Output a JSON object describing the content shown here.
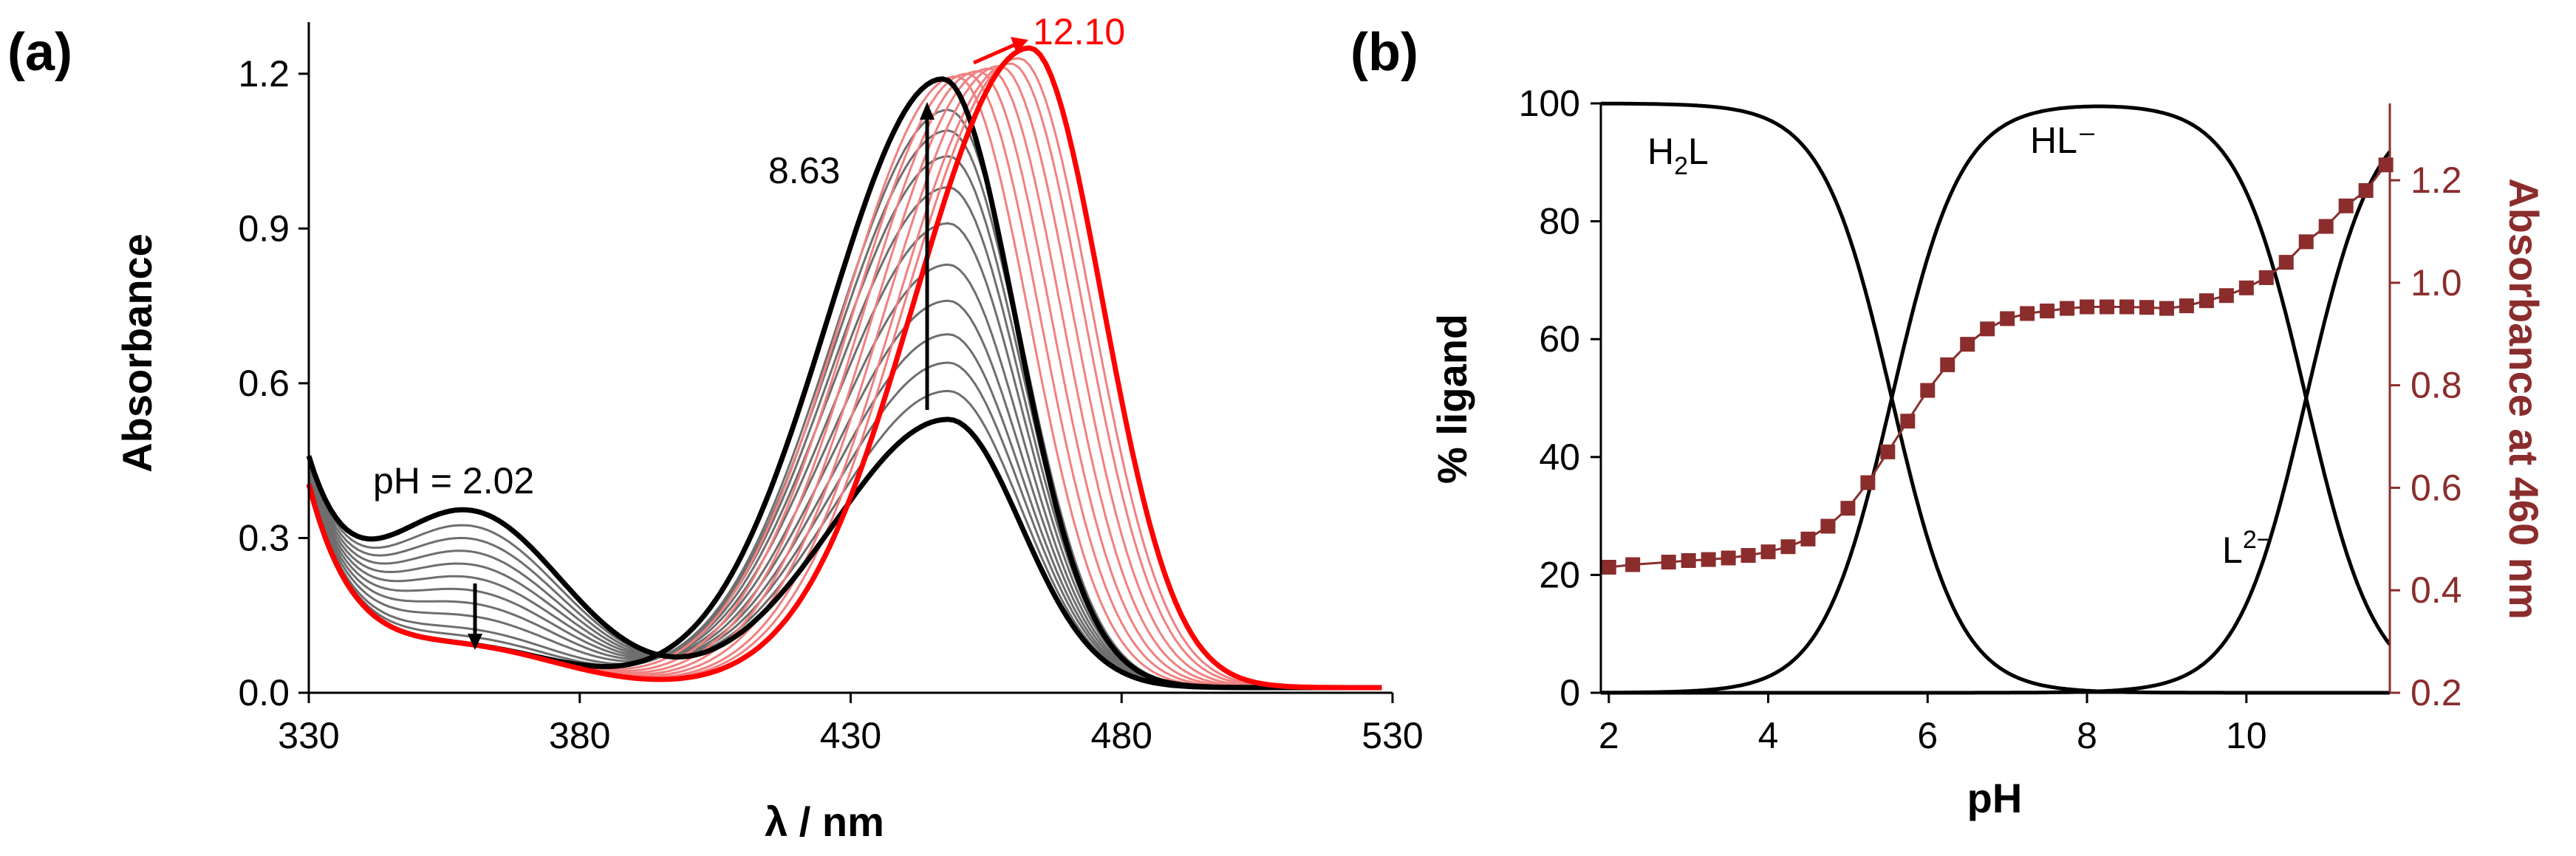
{
  "panel_labels": {
    "a": "(a)",
    "b": "(b)"
  },
  "chart_data": [
    {
      "type": "line",
      "panel": "(a)",
      "title": "",
      "xlabel": "λ / nm",
      "ylabel": "Absorbance",
      "xlim": [
        330,
        530
      ],
      "ylim": [
        0.0,
        1.3
      ],
      "x_ticks": [
        "330",
        "380",
        "430",
        "480",
        "530"
      ],
      "y_ticks": [
        "0.0",
        "0.3",
        "0.6",
        "0.9",
        "1.2"
      ],
      "grid": false,
      "annotations": {
        "start": "pH = 2.02",
        "mid": "8.63",
        "end": "12.10"
      },
      "colors": {
        "gray": "#6e6e6e",
        "black": "#000000",
        "pink": "#f08080",
        "red": "#ff0000"
      },
      "spectra": [
        {
          "name": "pH 2.02",
          "group": "gray-bold",
          "peak": 0.52,
          "pos": 448,
          "shoulder": 0.33
        },
        {
          "name": "gray-1",
          "group": "gray",
          "peak": 0.575,
          "pos": 448,
          "shoulder": 0.3
        },
        {
          "name": "gray-2",
          "group": "gray",
          "peak": 0.63,
          "pos": 448,
          "shoulder": 0.275
        },
        {
          "name": "gray-3",
          "group": "gray",
          "peak": 0.685,
          "pos": 448,
          "shoulder": 0.25
        },
        {
          "name": "gray-4",
          "group": "gray",
          "peak": 0.75,
          "pos": 448,
          "shoulder": 0.225
        },
        {
          "name": "gray-5",
          "group": "gray",
          "peak": 0.82,
          "pos": 448,
          "shoulder": 0.2
        },
        {
          "name": "gray-6",
          "group": "gray",
          "peak": 0.9,
          "pos": 448,
          "shoulder": 0.175
        },
        {
          "name": "gray-7",
          "group": "gray",
          "peak": 0.97,
          "pos": 448,
          "shoulder": 0.15
        },
        {
          "name": "gray-8",
          "group": "gray",
          "peak": 1.03,
          "pos": 448,
          "shoulder": 0.125
        },
        {
          "name": "gray-9",
          "group": "gray",
          "peak": 1.08,
          "pos": 448,
          "shoulder": 0.1
        },
        {
          "name": "gray-10",
          "group": "gray",
          "peak": 1.12,
          "pos": 448,
          "shoulder": 0.085
        },
        {
          "name": "pH 8.63",
          "group": "black-bold",
          "peak": 1.18,
          "pos": 447,
          "shoulder": 0.07
        },
        {
          "name": "pink-1",
          "group": "pink",
          "peak": 1.185,
          "pos": 449.5,
          "shoulder": 0.07
        },
        {
          "name": "pink-2",
          "group": "pink",
          "peak": 1.19,
          "pos": 451.5,
          "shoulder": 0.07
        },
        {
          "name": "pink-3",
          "group": "pink",
          "peak": 1.195,
          "pos": 453.5,
          "shoulder": 0.07
        },
        {
          "name": "pink-4",
          "group": "pink",
          "peak": 1.2,
          "pos": 455.5,
          "shoulder": 0.07
        },
        {
          "name": "pink-5",
          "group": "pink",
          "peak": 1.205,
          "pos": 457.5,
          "shoulder": 0.07
        },
        {
          "name": "pink-6",
          "group": "pink",
          "peak": 1.21,
          "pos": 459.5,
          "shoulder": 0.07
        },
        {
          "name": "pink-7",
          "group": "pink",
          "peak": 1.22,
          "pos": 461,
          "shoulder": 0.07
        },
        {
          "name": "pH 12.10",
          "group": "red-bold",
          "peak": 1.24,
          "pos": 463,
          "shoulder": 0.07
        }
      ]
    },
    {
      "type": "line",
      "panel": "(b)",
      "title": "",
      "xlabel": "pH",
      "ylabel": "% ligand",
      "y2label": "Absorbance at 460 nm",
      "xlim": [
        1.9,
        11.8
      ],
      "ylim": [
        0,
        100
      ],
      "y2lim": [
        0.2,
        1.35
      ],
      "x_ticks": [
        "2",
        "4",
        "6",
        "8",
        "10"
      ],
      "y_ticks": [
        "0",
        "20",
        "40",
        "60",
        "80",
        "100"
      ],
      "y2_ticks": [
        "0.2",
        "0.4",
        "0.6",
        "0.8",
        "1.0",
        "1.2"
      ],
      "pKa": [
        5.55,
        10.75
      ],
      "species_labels": {
        "H2L_main": "H",
        "H2L_sub": "2",
        "H2L_tail": "L",
        "HL": "HL⁻",
        "L_main": "L",
        "L_sup": "2−"
      },
      "colors": {
        "species": "#000000",
        "absorbance": "#8b2d2d"
      },
      "absorbance_x": [
        2.0,
        2.3,
        2.75,
        3.0,
        3.25,
        3.5,
        3.75,
        4.0,
        4.25,
        4.5,
        4.75,
        5.0,
        5.25,
        5.5,
        5.75,
        6.0,
        6.25,
        6.5,
        6.75,
        7.0,
        7.25,
        7.5,
        7.75,
        8.0,
        8.25,
        8.5,
        8.75,
        9.0,
        9.25,
        9.5,
        9.75,
        10.0,
        10.25,
        10.5,
        10.75,
        11.0,
        11.25,
        11.5,
        11.75
      ],
      "absorbance_y": [
        0.445,
        0.45,
        0.455,
        0.458,
        0.46,
        0.463,
        0.468,
        0.475,
        0.485,
        0.5,
        0.525,
        0.56,
        0.61,
        0.67,
        0.73,
        0.79,
        0.84,
        0.88,
        0.91,
        0.93,
        0.94,
        0.945,
        0.95,
        0.953,
        0.953,
        0.953,
        0.952,
        0.95,
        0.955,
        0.965,
        0.975,
        0.99,
        1.01,
        1.04,
        1.08,
        1.11,
        1.15,
        1.18,
        1.23
      ]
    }
  ]
}
